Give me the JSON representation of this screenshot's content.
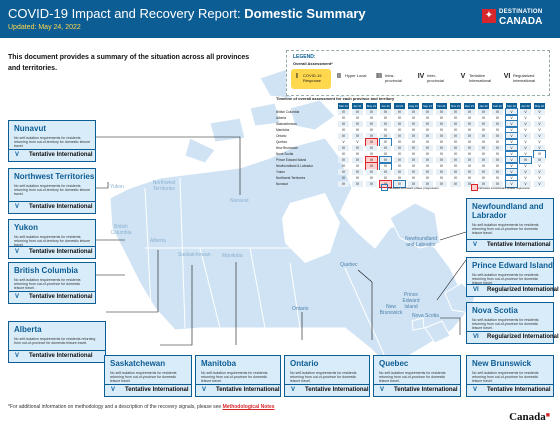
{
  "header": {
    "title_main": "COVID-19 Impact and Recovery Report: ",
    "title_bold": "Domestic Summary",
    "updated": "Updated: May 24, 2022",
    "brand_line1": "DESTINATION",
    "brand_line2": "CANADA"
  },
  "intro": "This document provides a summary of the situation across all provinces and territories.",
  "legend": {
    "title": "LEGEND:",
    "subtitle": "Overall Assessment*",
    "items": [
      {
        "num": "I",
        "label": "COVID-19 Response"
      },
      {
        "num": "II",
        "label": "Hyper Local"
      },
      {
        "num": "III",
        "label": "Intra-provincial"
      },
      {
        "num": "IV",
        "label": "Inter-provincial"
      },
      {
        "num": "V",
        "label": "Tentative International"
      },
      {
        "num": "VI",
        "label": "Regularized International"
      }
    ]
  },
  "timeline": {
    "title": "Timeline of overall assessment for each province and territory",
    "months": [
      "Mar 21",
      "Apr 21",
      "May 21",
      "Jun 21",
      "Jul 21",
      "Aug 21",
      "Sep 21",
      "Oct 21",
      "Nov 21",
      "Dec 21",
      "Jan 22",
      "Feb 22",
      "Mar 22",
      "Apr 22",
      "May 22"
    ],
    "rows": [
      {
        "name": "British Columbia",
        "values": [
          "IV",
          "IV",
          "IV",
          "IV",
          "IV",
          "IV",
          "IV",
          "IV",
          "IV",
          "IV",
          "IV",
          "IV",
          "V",
          "V",
          "V"
        ]
      },
      {
        "name": "Alberta",
        "values": [
          "IV",
          "IV",
          "IV",
          "IV",
          "IV",
          "IV",
          "IV",
          "IV",
          "IV",
          "IV",
          "IV",
          "IV",
          "V",
          "V",
          "V"
        ]
      },
      {
        "name": "Saskatchewan",
        "values": [
          "IV",
          "IV",
          "IV",
          "IV",
          "IV",
          "IV",
          "IV",
          "IV",
          "IV",
          "IV",
          "IV",
          "IV",
          "V",
          "V",
          "V"
        ]
      },
      {
        "name": "Manitoba",
        "values": [
          "IV",
          "IV",
          "IV",
          "IV",
          "IV",
          "IV",
          "IV",
          "IV",
          "IV",
          "IV",
          "IV",
          "IV",
          "V",
          "V",
          "V"
        ]
      },
      {
        "name": "Ontario",
        "values": [
          "IV",
          "IV",
          "IV",
          "IV",
          "IV",
          "IV",
          "IV",
          "IV",
          "IV",
          "IV",
          "IV",
          "IV",
          "V",
          "V",
          "V"
        ]
      },
      {
        "name": "Quebec",
        "values": [
          "V",
          "V",
          "III",
          "IV",
          "IV",
          "IV",
          "IV",
          "IV",
          "IV",
          "IV",
          "IV",
          "IV",
          "V",
          "V",
          "V"
        ]
      },
      {
        "name": "New Brunswick",
        "values": [
          "IV",
          "IV",
          "IV",
          "IV",
          "IV",
          "IV",
          "IV",
          "IV",
          "IV",
          "IV",
          "IV",
          "IV",
          "V",
          "V",
          "V"
        ]
      },
      {
        "name": "Nova Scotia",
        "values": [
          "IV",
          "IV",
          "IV",
          "IV",
          "IV",
          "IV",
          "IV",
          "IV",
          "IV",
          "IV",
          "IV",
          "IV",
          "V",
          "V",
          "VI"
        ]
      },
      {
        "name": "Prince Edward Island",
        "values": [
          "IV",
          "IV",
          "III",
          "IV",
          "IV",
          "IV",
          "IV",
          "IV",
          "IV",
          "IV",
          "IV",
          "IV",
          "V",
          "VI",
          "VI"
        ]
      },
      {
        "name": "Newfoundland & Labrador",
        "values": [
          "IV",
          "IV",
          "III",
          "IV",
          "IV",
          "IV",
          "IV",
          "IV",
          "IV",
          "IV",
          "IV",
          "IV",
          "V",
          "V",
          "V"
        ]
      },
      {
        "name": "Yukon",
        "values": [
          "IV",
          "IV",
          "IV",
          "IV",
          "IV",
          "IV",
          "IV",
          "IV",
          "IV",
          "IV",
          "IV",
          "IV",
          "V",
          "V",
          "V"
        ]
      },
      {
        "name": "Northwest Territories",
        "values": [
          "IV",
          "IV",
          "IV",
          "IV",
          "IV",
          "IV",
          "IV",
          "IV",
          "IV",
          "IV",
          "IV",
          "IV",
          "V",
          "V",
          "V"
        ]
      },
      {
        "name": "Nunavut",
        "values": [
          "IV",
          "IV",
          "IV",
          "III",
          "IV",
          "IV",
          "IV",
          "IV",
          "IV",
          "IV",
          "IV",
          "IV",
          "V",
          "V",
          "V"
        ]
      }
    ],
    "forward_label": "Indicates a forward phase progression",
    "backward_label": "Indicates a backward phase regression"
  },
  "map_labels": {
    "yukon": "Yukon",
    "nwt": "Northwest Territories",
    "nunavut": "Nunavut",
    "bc": "British Columbia",
    "alberta": "Alberta",
    "sask": "Saskatchewan",
    "manitoba": "Manitoba",
    "ontario": "Ontario",
    "quebec": "Quebec",
    "nl": "Newfoundland and Labrador",
    "pei": "Prince Edward Island",
    "nb": "New Brunswick",
    "ns": "Nova Scotia"
  },
  "provinces": {
    "nunavut": {
      "name": "Nunavut",
      "desc": "No self-isolation requirements for residents returning from out-of-territory for domestic leisure travel.",
      "num": "V",
      "status": "Tentative International"
    },
    "nwt": {
      "name": "Northwest Territories",
      "desc": "No self-isolation requirements for residents returning from out-of-territory for domestic leisure travel.",
      "num": "V",
      "status": "Tentative International"
    },
    "yukon": {
      "name": "Yukon",
      "desc": "No self-isolation requirements for residents returning from out-of-territory for domestic leisure travel.",
      "num": "V",
      "status": "Tentative International"
    },
    "bc": {
      "name": "British Columbia",
      "desc": "No self-isolation requirements for residents returning from out-of-province for domestic leisure travel.",
      "num": "V",
      "status": "Tentative International"
    },
    "alberta": {
      "name": "Alberta",
      "desc": "No self-isolation requirements for residents returning from out-of-province for domestic leisure travel.",
      "num": "V",
      "status": "Tentative International"
    },
    "sask": {
      "name": "Saskatchewan",
      "desc": "No self-isolation requirements for residents returning from out-of-province for domestic leisure travel.",
      "num": "V",
      "status": "Tentative International"
    },
    "manitoba": {
      "name": "Manitoba",
      "desc": "No self-isolation requirements for residents returning from out-of-province for domestic leisure travel.",
      "num": "V",
      "status": "Tentative International"
    },
    "ontario": {
      "name": "Ontario",
      "desc": "No self-isolation requirements for residents returning from out-of-province for domestic leisure travel.",
      "num": "V",
      "status": "Tentative International"
    },
    "quebec": {
      "name": "Quebec",
      "desc": "No self-isolation requirements for residents returning from out-of-province for domestic leisure travel.",
      "num": "V",
      "status": "Tentative International"
    },
    "nl": {
      "name": "Newfoundland and Labrador",
      "desc": "No self-isolation requirements for residents returning from out-of-province for domestic leisure travel.",
      "num": "V",
      "status": "Tentative International"
    },
    "pei": {
      "name": "Prince Edward Island",
      "desc": "No self-isolation requirements for residents returning from out-of-province for domestic leisure travel.",
      "num": "VI",
      "status": "Regularized International"
    },
    "ns": {
      "name": "Nova Scotia",
      "desc": "No self-isolation requirements for residents returning from out-of-province for domestic leisure travel.",
      "num": "VI",
      "status": "Regularized International"
    },
    "nb": {
      "name": "New Brunswick",
      "desc": "No self-isolation requirements for residents returning from out-of-province for domestic leisure travel.",
      "num": "V",
      "status": "Tentative International"
    }
  },
  "footnote": {
    "text": "*For additional information on methodology and a description of the recovery signals, please see ",
    "link": "Methodological Notes"
  },
  "wordmark": "Canada",
  "colors": {
    "brand": "#0d5d95",
    "accent": "#d7272c",
    "yellow": "#ffd84d",
    "map": "#cfe3f4",
    "box": "#d9ecf9"
  }
}
